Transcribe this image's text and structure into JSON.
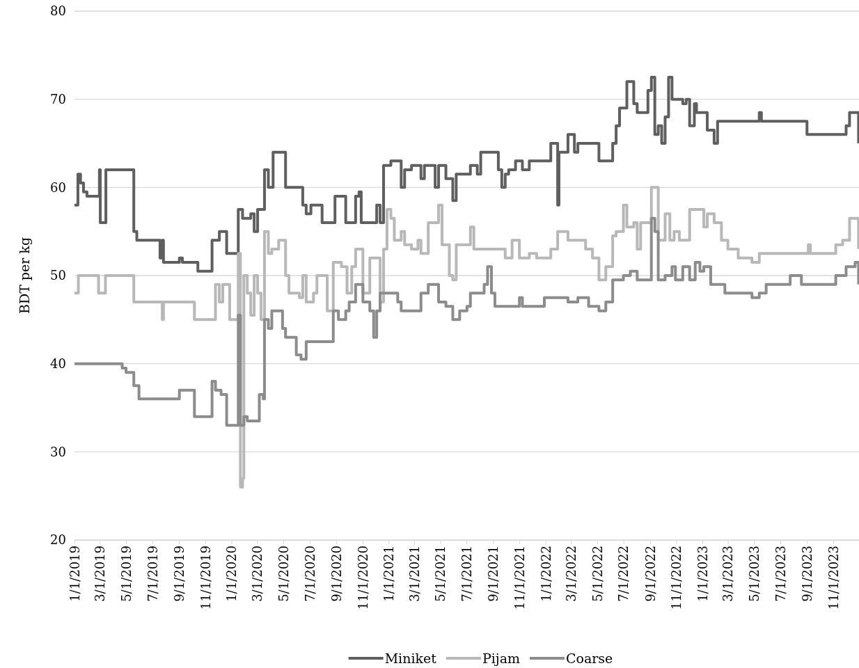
{
  "chart_data": {
    "type": "step",
    "ylabel": "BDT per kg",
    "ylim": [
      20,
      80
    ],
    "yticks": [
      20,
      30,
      40,
      50,
      60,
      70,
      80
    ],
    "xlim": [
      "2019-01-01",
      "2023-12-31"
    ],
    "xticks": [
      {
        "value": "2019-01-01",
        "label": "1/1/2019"
      },
      {
        "value": "2019-03-01",
        "label": "3/1/2019"
      },
      {
        "value": "2019-05-01",
        "label": "5/1/2019"
      },
      {
        "value": "2019-07-01",
        "label": "7/1/2019"
      },
      {
        "value": "2019-09-01",
        "label": "9/1/2019"
      },
      {
        "value": "2019-11-01",
        "label": "11/1/2019"
      },
      {
        "value": "2020-01-01",
        "label": "1/1/2020"
      },
      {
        "value": "2020-03-01",
        "label": "3/1/2020"
      },
      {
        "value": "2020-05-01",
        "label": "5/1/2020"
      },
      {
        "value": "2020-07-01",
        "label": "7/1/2020"
      },
      {
        "value": "2020-09-01",
        "label": "9/1/2020"
      },
      {
        "value": "2020-11-01",
        "label": "11/1/2020"
      },
      {
        "value": "2021-01-01",
        "label": "1/1/2021"
      },
      {
        "value": "2021-03-01",
        "label": "3/1/2021"
      },
      {
        "value": "2021-05-01",
        "label": "5/1/2021"
      },
      {
        "value": "2021-07-01",
        "label": "7/1/2021"
      },
      {
        "value": "2021-09-01",
        "label": "9/1/2021"
      },
      {
        "value": "2021-11-01",
        "label": "11/1/2021"
      },
      {
        "value": "2022-01-01",
        "label": "1/1/2022"
      },
      {
        "value": "2022-03-01",
        "label": "3/1/2022"
      },
      {
        "value": "2022-05-01",
        "label": "5/1/2022"
      },
      {
        "value": "2022-07-01",
        "label": "7/1/2022"
      },
      {
        "value": "2022-09-01",
        "label": "9/1/2022"
      },
      {
        "value": "2022-11-01",
        "label": "11/1/2022"
      },
      {
        "value": "2023-01-01",
        "label": "1/1/2023"
      },
      {
        "value": "2023-03-01",
        "label": "3/1/2023"
      },
      {
        "value": "2023-05-01",
        "label": "5/1/2023"
      },
      {
        "value": "2023-07-01",
        "label": "7/1/2023"
      },
      {
        "value": "2023-09-01",
        "label": "9/1/2023"
      },
      {
        "value": "2023-11-01",
        "label": "11/1/2023"
      }
    ],
    "grid": "y",
    "legend": "bottom",
    "marker": "none",
    "line_style": "solid",
    "series": [
      {
        "name": "Miniket",
        "color": "#5f5f5f",
        "x": [
          "2019-01-01",
          "2019-01-09",
          "2019-01-15",
          "2019-01-22",
          "2019-01-30",
          "2019-02-28",
          "2019-03-02",
          "2019-03-15",
          "2019-05-19",
          "2019-05-26",
          "2019-07-19",
          "2019-07-24",
          "2019-07-27",
          "2019-09-02",
          "2019-09-09",
          "2019-10-15",
          "2019-11-17",
          "2019-12-04",
          "2019-12-21",
          "2020-01-17",
          "2020-01-27",
          "2020-02-15",
          "2020-02-23",
          "2020-03-02",
          "2020-03-18",
          "2020-03-27",
          "2020-04-07",
          "2020-05-06",
          "2020-06-15",
          "2020-06-23",
          "2020-07-04",
          "2020-07-30",
          "2020-08-29",
          "2020-09-23",
          "2020-10-16",
          "2020-10-24",
          "2020-10-29",
          "2020-12-04",
          "2020-12-12",
          "2020-12-20",
          "2021-01-06",
          "2021-01-30",
          "2021-02-07",
          "2021-02-23",
          "2021-03-17",
          "2021-03-25",
          "2021-04-19",
          "2021-04-27",
          "2021-05-14",
          "2021-05-30",
          "2021-06-07",
          "2021-07-10",
          "2021-07-26",
          "2021-08-03",
          "2021-09-13",
          "2021-09-21",
          "2021-09-29",
          "2021-10-07",
          "2021-10-23",
          "2021-11-08",
          "2021-11-24",
          "2022-01-13",
          "2022-01-29",
          "2022-02-01",
          "2022-02-22",
          "2022-03-09",
          "2022-03-17",
          "2022-05-05",
          "2022-05-21",
          "2022-06-06",
          "2022-06-14",
          "2022-06-22",
          "2022-07-09",
          "2022-07-25",
          "2022-08-02",
          "2022-08-27",
          "2022-09-04",
          "2022-09-12",
          "2022-09-20",
          "2022-09-28",
          "2022-10-06",
          "2022-10-14",
          "2022-10-22",
          "2022-11-16",
          "2022-11-24",
          "2022-12-02",
          "2022-12-13",
          "2022-12-18",
          "2023-01-12",
          "2023-01-28",
          "2023-02-05",
          "2023-05-13",
          "2023-05-18",
          "2023-09-01",
          "2023-12-01",
          "2023-12-09",
          "2023-12-30"
        ],
        "values": [
          58,
          61.5,
          60.5,
          59.5,
          59,
          62,
          56,
          62,
          55,
          54,
          52,
          54,
          51.5,
          52,
          51.5,
          50.5,
          54,
          55,
          52.5,
          57.5,
          56.5,
          57,
          55,
          57.5,
          62,
          60,
          64,
          60,
          58,
          57,
          58,
          56,
          59,
          56,
          59,
          59.5,
          56,
          58,
          56,
          62.5,
          63,
          60,
          62,
          62.5,
          61,
          62.5,
          60,
          62.5,
          61,
          58.5,
          61.5,
          62.5,
          61.5,
          64,
          62,
          60,
          61.5,
          62,
          63,
          62,
          63,
          65,
          58,
          64,
          66,
          64,
          65,
          63,
          63,
          65,
          67,
          69,
          72,
          69.5,
          68.5,
          71,
          72.5,
          66,
          67,
          65,
          68,
          72.5,
          70,
          69.5,
          70,
          67,
          69.5,
          68.5,
          66.5,
          65,
          67.5,
          68.5,
          67.5,
          66,
          67,
          68.5,
          65
        ]
      },
      {
        "name": "Pijam",
        "color": "#b8b8b8",
        "x": [
          "2019-01-01",
          "2019-01-10",
          "2019-02-26",
          "2019-03-14",
          "2019-05-19",
          "2019-07-24",
          "2019-07-27",
          "2019-10-07",
          "2019-11-25",
          "2019-12-04",
          "2019-12-12",
          "2019-12-28",
          "2020-01-17",
          "2020-01-22",
          "2020-01-27",
          "2020-01-30",
          "2020-02-07",
          "2020-02-15",
          "2020-02-23",
          "2020-03-02",
          "2020-03-10",
          "2020-03-18",
          "2020-03-27",
          "2020-04-04",
          "2020-04-20",
          "2020-05-06",
          "2020-05-14",
          "2020-06-07",
          "2020-06-15",
          "2020-06-23",
          "2020-07-10",
          "2020-07-18",
          "2020-08-11",
          "2020-08-25",
          "2020-09-13",
          "2020-09-26",
          "2020-10-07",
          "2020-10-16",
          "2020-11-02",
          "2020-11-18",
          "2020-12-12",
          "2020-12-20",
          "2020-12-28",
          "2021-01-06",
          "2021-01-14",
          "2021-01-30",
          "2021-02-07",
          "2021-02-23",
          "2021-03-10",
          "2021-03-17",
          "2021-04-03",
          "2021-04-27",
          "2021-05-05",
          "2021-05-22",
          "2021-05-30",
          "2021-06-07",
          "2021-07-10",
          "2021-07-18",
          "2021-09-29",
          "2021-10-15",
          "2021-11-01",
          "2021-11-24",
          "2021-12-11",
          "2022-01-13",
          "2022-01-29",
          "2022-02-22",
          "2022-04-04",
          "2022-04-20",
          "2022-05-05",
          "2022-05-21",
          "2022-06-06",
          "2022-06-14",
          "2022-07-01",
          "2022-07-09",
          "2022-07-25",
          "2022-08-02",
          "2022-08-10",
          "2022-09-04",
          "2022-09-20",
          "2022-10-06",
          "2022-10-17",
          "2022-10-27",
          "2022-11-08",
          "2022-12-02",
          "2023-01-04",
          "2023-01-12",
          "2023-01-28",
          "2023-02-14",
          "2023-03-01",
          "2023-03-25",
          "2023-04-26",
          "2023-05-13",
          "2023-09-04",
          "2023-09-09",
          "2023-11-07",
          "2023-11-23",
          "2023-12-09",
          "2023-12-30"
        ],
        "values": [
          48,
          50,
          48,
          50,
          47,
          45,
          47,
          45,
          49,
          47,
          49,
          45,
          52.5,
          26,
          27,
          50,
          48,
          45.5,
          50,
          48,
          45,
          55,
          52.5,
          53,
          54,
          50,
          48,
          47.5,
          50,
          47,
          48,
          50,
          46,
          51.5,
          51,
          48,
          51,
          53,
          48,
          52,
          47,
          53,
          57.5,
          56.5,
          54,
          55,
          53.5,
          53,
          54,
          52.5,
          56,
          58,
          53.5,
          50,
          49.5,
          53.5,
          55.5,
          53,
          52,
          54,
          52,
          52.5,
          52,
          53,
          55,
          54,
          53,
          52,
          49.5,
          51,
          54.5,
          55,
          58,
          55.5,
          56,
          53,
          56,
          60,
          54,
          57,
          54,
          55,
          54,
          57.5,
          55.5,
          57,
          56,
          54,
          53,
          52,
          51.5,
          52.5,
          53.5,
          52.5,
          53.5,
          54,
          56.5,
          53
        ]
      },
      {
        "name": "Coarse",
        "color": "#8c8c8c",
        "x": [
          "2019-01-01",
          "2019-04-22",
          "2019-05-01",
          "2019-05-19",
          "2019-05-31",
          "2019-09-02",
          "2019-10-07",
          "2019-11-17",
          "2019-11-25",
          "2019-12-08",
          "2019-12-21",
          "2020-01-17",
          "2020-01-22",
          "2020-01-30",
          "2020-02-07",
          "2020-03-06",
          "2020-03-15",
          "2020-03-18",
          "2020-03-27",
          "2020-04-04",
          "2020-04-29",
          "2020-05-06",
          "2020-05-31",
          "2020-06-11",
          "2020-06-23",
          "2020-08-25",
          "2020-09-06",
          "2020-09-23",
          "2020-10-01",
          "2020-10-16",
          "2020-11-02",
          "2020-11-18",
          "2020-11-27",
          "2020-12-04",
          "2020-12-12",
          "2021-01-22",
          "2021-01-30",
          "2021-03-17",
          "2021-04-03",
          "2021-04-27",
          "2021-05-14",
          "2021-05-30",
          "2021-06-15",
          "2021-07-02",
          "2021-07-10",
          "2021-08-11",
          "2021-08-19",
          "2021-08-28",
          "2021-09-05",
          "2021-11-01",
          "2021-11-08",
          "2021-12-29",
          "2022-02-22",
          "2022-03-17",
          "2022-04-11",
          "2022-05-05",
          "2022-05-21",
          "2022-06-06",
          "2022-07-01",
          "2022-07-17",
          "2022-08-02",
          "2022-09-04",
          "2022-09-12",
          "2022-09-20",
          "2022-10-06",
          "2022-10-22",
          "2022-10-30",
          "2022-11-16",
          "2022-12-02",
          "2022-12-15",
          "2022-12-26",
          "2023-01-04",
          "2023-01-20",
          "2023-02-22",
          "2023-04-26",
          "2023-05-13",
          "2023-05-29",
          "2023-07-24",
          "2023-08-19",
          "2023-11-07",
          "2023-12-01",
          "2023-12-22",
          "2023-12-30"
        ],
        "values": [
          40,
          39.5,
          39,
          37.5,
          36,
          37,
          34,
          38,
          37,
          36.5,
          33,
          45.5,
          33,
          34,
          33.5,
          36.5,
          36,
          45,
          44,
          46,
          44,
          43,
          41,
          40.5,
          42.5,
          46,
          45,
          46,
          47,
          49,
          47,
          46,
          43,
          46,
          48,
          47,
          46,
          48,
          49,
          47,
          46.5,
          45,
          46,
          46.5,
          48,
          49,
          51,
          48,
          46.5,
          47.5,
          46.5,
          47.5,
          47,
          47.5,
          46.5,
          46,
          47,
          49.5,
          50,
          50.5,
          49.5,
          56.5,
          55,
          49.5,
          50,
          51,
          49.5,
          51,
          49.5,
          51.5,
          50.5,
          51,
          49,
          48,
          47.5,
          48,
          49,
          50,
          49,
          50,
          51,
          51.5,
          49
        ]
      }
    ]
  }
}
